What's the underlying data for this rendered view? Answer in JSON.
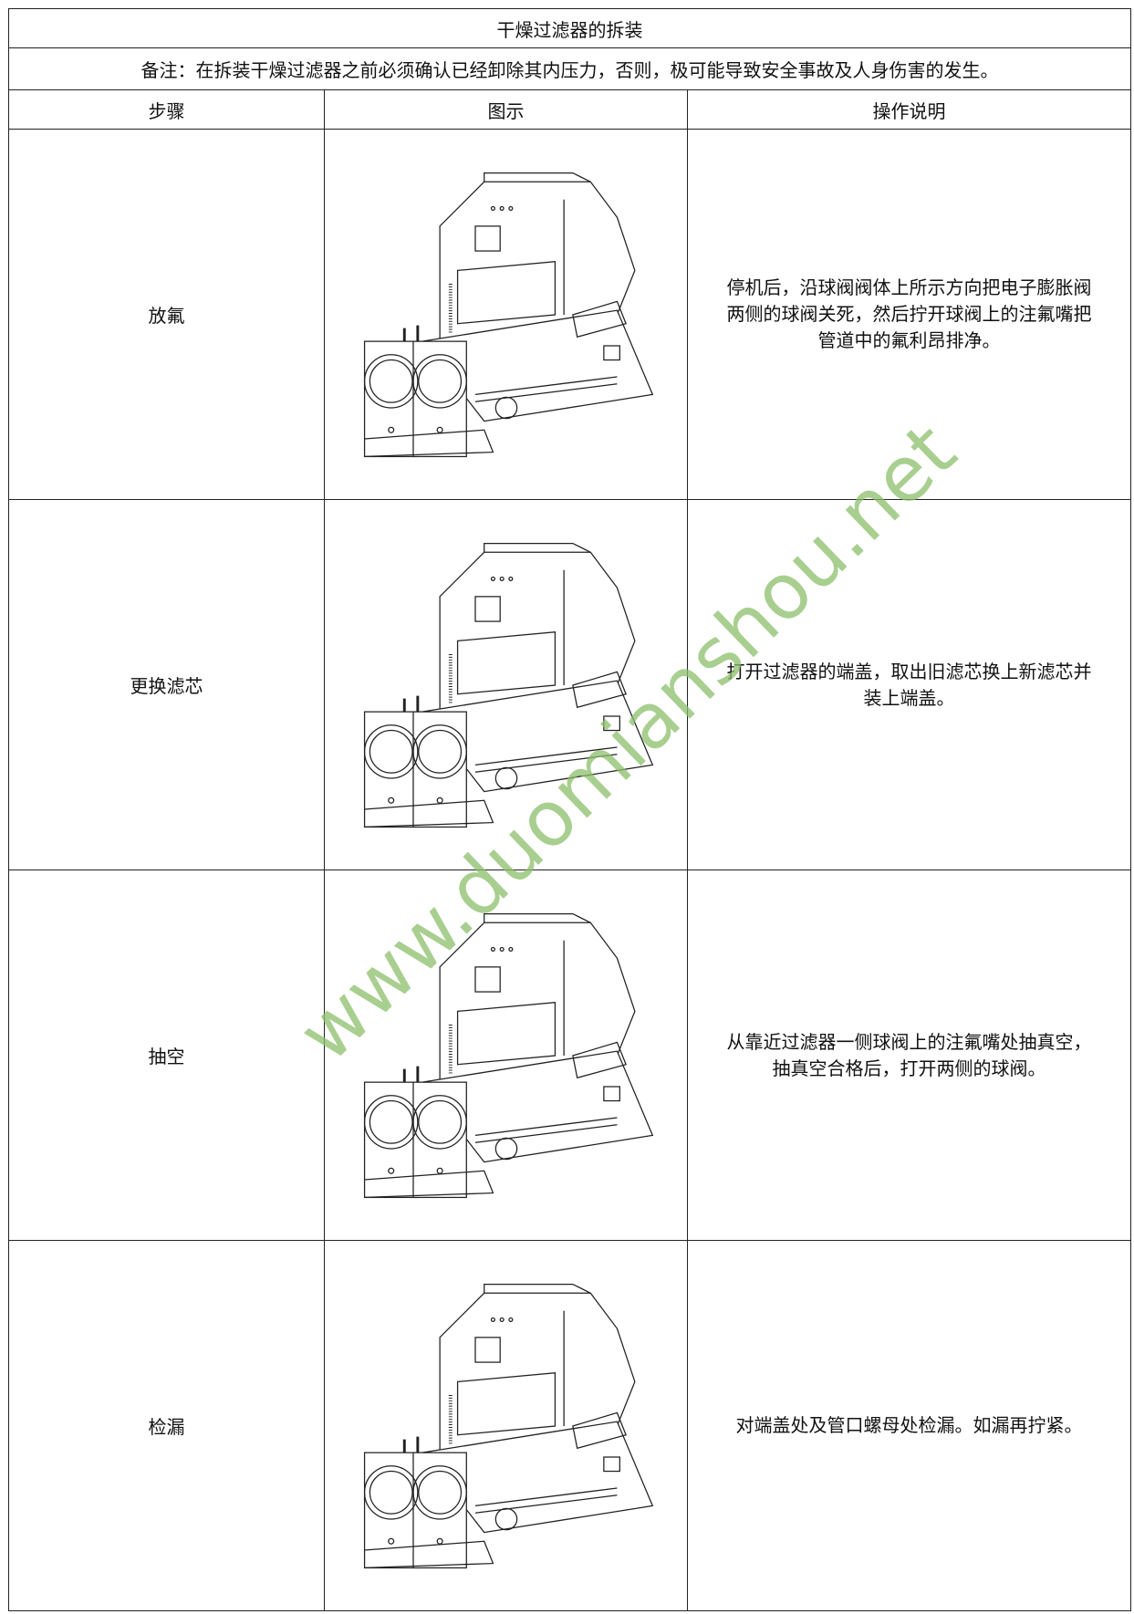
{
  "title": "干燥过滤器的拆装",
  "note": "备注：在拆装干燥过滤器之前必须确认已经卸除其内压力，否则，极可能导致安全事故及人身伤害的发生。",
  "table": {
    "header": [
      "步骤",
      "图示",
      "操作说明"
    ],
    "rows": [
      [
        "放氟",
        "停机后，沿球阀阀体上所示方向把电子膨胀阀两侧的球阀关死，然后拧开球阀上的注氟嘴把管道中的氟利昂排净。"
      ],
      [
        "更换滤芯",
        "打开过滤器的端盖，取出旧滤芯换上新滤芯并装上端盖。"
      ],
      [
        "抽空",
        "从靠近过滤器一侧球阀上的注氟嘴处抽真空，抽真空合格后，打开两侧的球阀。"
      ],
      [
        "检漏",
        "对端盖处及管口螺母处检漏。如漏再拧紧。"
      ]
    ]
  },
  "watermark": "www.duomianshou.net"
}
